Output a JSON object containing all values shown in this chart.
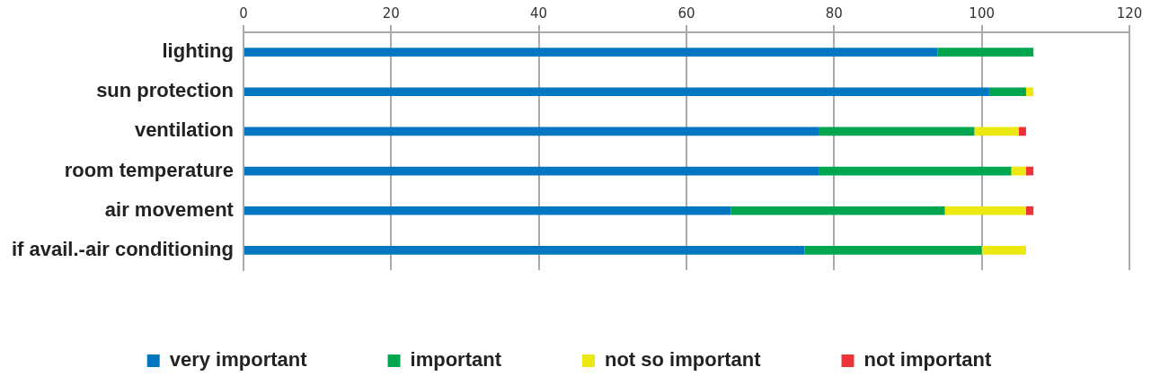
{
  "chart_data": {
    "type": "bar",
    "orientation": "horizontal",
    "stacked": true,
    "categories": [
      "lighting",
      "sun protection",
      "ventilation",
      "room temperature",
      "air movement",
      "if avail.-air conditioning"
    ],
    "series": [
      {
        "name": "very important",
        "color": "#0077c0",
        "values": [
          94,
          101,
          78,
          78,
          66,
          76
        ]
      },
      {
        "name": "important",
        "color": "#00a64f",
        "values": [
          13,
          5,
          21,
          26,
          29,
          24
        ]
      },
      {
        "name": "not so important",
        "color": "#ece812",
        "values": [
          0,
          1,
          6,
          2,
          11,
          6
        ]
      },
      {
        "name": "not important",
        "color": "#ee3338",
        "values": [
          0,
          0,
          1,
          1,
          1,
          0
        ]
      }
    ],
    "xlim": [
      0,
      120
    ],
    "xticks": [
      0,
      20,
      40,
      60,
      80,
      100,
      120
    ],
    "grid": "x",
    "legend": "bottom"
  }
}
